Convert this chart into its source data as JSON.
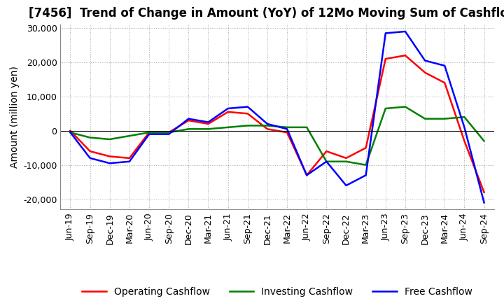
{
  "title": "[7456]  Trend of Change in Amount (YoY) of 12Mo Moving Sum of Cashflows",
  "ylabel": "Amount (million yen)",
  "ylim": [
    -23000,
    31000
  ],
  "yticks": [
    -20000,
    -10000,
    0,
    10000,
    20000,
    30000
  ],
  "x_labels": [
    "Jun-19",
    "Sep-19",
    "Dec-19",
    "Mar-20",
    "Jun-20",
    "Sep-20",
    "Dec-20",
    "Mar-21",
    "Jun-21",
    "Sep-21",
    "Dec-21",
    "Mar-22",
    "Jun-22",
    "Sep-22",
    "Dec-22",
    "Mar-23",
    "Jun-23",
    "Sep-23",
    "Dec-23",
    "Mar-24",
    "Jun-24",
    "Sep-24"
  ],
  "operating": [
    0,
    -6000,
    -7500,
    -8000,
    -500,
    -500,
    3000,
    2000,
    5500,
    5000,
    500,
    -500,
    -13000,
    -6000,
    -8000,
    -5000,
    21000,
    22000,
    17000,
    14000,
    -3000,
    -18000
  ],
  "investing": [
    -500,
    -2000,
    -2500,
    -1500,
    -500,
    -500,
    500,
    500,
    1000,
    1500,
    1500,
    1000,
    1000,
    -9000,
    -9000,
    -10000,
    6500,
    7000,
    3500,
    3500,
    4000,
    -3000
  ],
  "free": [
    -500,
    -8000,
    -9500,
    -9000,
    -1000,
    -1000,
    3500,
    2500,
    6500,
    7000,
    2000,
    500,
    -13000,
    -9000,
    -16000,
    -13000,
    28500,
    29000,
    20500,
    19000,
    1000,
    -21000
  ],
  "operating_color": "#ff0000",
  "investing_color": "#008000",
  "free_color": "#0000ff",
  "background_color": "#ffffff",
  "grid_color": "#aaaaaa",
  "title_fontsize": 12,
  "axis_fontsize": 10,
  "tick_fontsize": 9,
  "legend_fontsize": 10
}
